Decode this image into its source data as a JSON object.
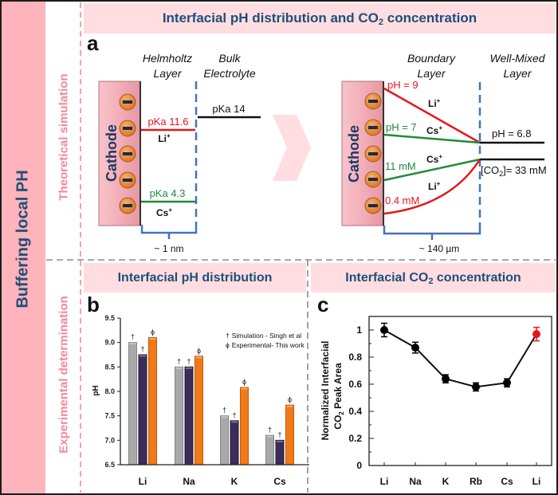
{
  "sidebar": {
    "title": "Buffering local PH"
  },
  "sections": {
    "theoretical": "Theoretical simulation",
    "experimental": "Experimental determination"
  },
  "header": {
    "title_prefix": "Interfacial pH distribution and CO",
    "title_sub": "2",
    "title_suffix": " concentration"
  },
  "colors": {
    "navy": "#1F4E79",
    "sidebar_pink": "#FFB3BA",
    "band_pink": "#FFDDE1",
    "section_pink": "#F58896",
    "li_red": "#E8151B",
    "cs_green": "#1E8B3A",
    "boundary_blue": "#4472C4"
  },
  "panel_a": {
    "label": "a",
    "charge": "+",
    "cathode_label": "Cathode",
    "left": {
      "layer_inner": [
        "Helmholtz",
        "Layer"
      ],
      "layer_outer": [
        "Bulk",
        "Electrolyte"
      ],
      "li_pka": "pKa 11.6",
      "li_ion": "Li",
      "cs_pka": "pKa 4.3",
      "cs_ion": "Cs",
      "bulk_pka": "pKa 14",
      "thickness": "~ 1 nm"
    },
    "right": {
      "layer_inner": [
        "Boundary",
        "Layer"
      ],
      "layer_outer": [
        "Well-Mixed",
        "Layer"
      ],
      "li_ph": "pH = 9",
      "cs_ph": "pH = 7",
      "bulk_ph": "pH = 6.8",
      "cs_co2": "11 mM",
      "li_co2": "0.4 mM",
      "bulk_co2_prefix": "[CO",
      "bulk_co2_sub": "2",
      "bulk_co2_suffix": "]= 33 mM",
      "li_ion": "Li",
      "cs_ion": "Cs",
      "thickness": "~ 140 µm"
    }
  },
  "panel_b": {
    "label": "b",
    "title": "Interfacial pH distribution"
  },
  "panel_c": {
    "label": "c",
    "title_prefix": "Interfacial CO",
    "title_sub": "2",
    "title_suffix": " concentration"
  },
  "chart_data": [
    {
      "type": "bar",
      "title": "Interfacial pH distribution",
      "categories": [
        "Li",
        "Na",
        "K",
        "Cs"
      ],
      "series": [
        {
          "name": "Simulation - Singh et al",
          "marker": "†",
          "color": "#A9A9A9",
          "values": [
            9.0,
            8.5,
            7.5,
            7.1
          ]
        },
        {
          "name": "Simulation - Singh et al",
          "marker": "†",
          "color": "#3B2D57",
          "values": [
            8.75,
            8.5,
            7.4,
            7.0
          ]
        },
        {
          "name": "Experimental- This work",
          "marker": "ϕ",
          "color": "#F07A18",
          "values": [
            9.1,
            8.72,
            8.08,
            7.72
          ]
        }
      ],
      "legend": [
        {
          "marker": "†",
          "label": "Simulation - Singh et al"
        },
        {
          "marker": "ϕ",
          "label": "Experimental- This work"
        }
      ],
      "legend_position": "top-right",
      "xlabel": "",
      "ylabel": "pH",
      "ylim": [
        6.5,
        9.5
      ],
      "yticks": [
        "6.5",
        "7.0",
        "7.5",
        "8.0",
        "8.5",
        "9.0",
        "9.5"
      ],
      "grid": false
    },
    {
      "type": "line",
      "title": "Interfacial CO2 concentration",
      "categories": [
        "Li",
        "Na",
        "K",
        "Rb",
        "Cs",
        "Li"
      ],
      "series": [
        {
          "name": "Normalized Interfacial CO2 Peak Area",
          "values": [
            1.0,
            0.87,
            0.64,
            0.58,
            0.61,
            0.97
          ],
          "errors": [
            0.05,
            0.04,
            0.03,
            0.03,
            0.03,
            0.05
          ],
          "point_colors": [
            "#000000",
            "#000000",
            "#000000",
            "#000000",
            "#000000",
            "#E8141B"
          ]
        }
      ],
      "xlabel": "",
      "ylabel": {
        "line1": "Normalized Interfacial",
        "line2_prefix": "CO",
        "line2_sub": "2",
        "line2_suffix": " Peak Area"
      },
      "ylim": [
        0,
        1.1
      ],
      "yticks": [
        "0",
        "0.2",
        "0.4",
        "0.6",
        "0.8",
        "1"
      ],
      "grid": false,
      "legend_position": "none"
    }
  ]
}
